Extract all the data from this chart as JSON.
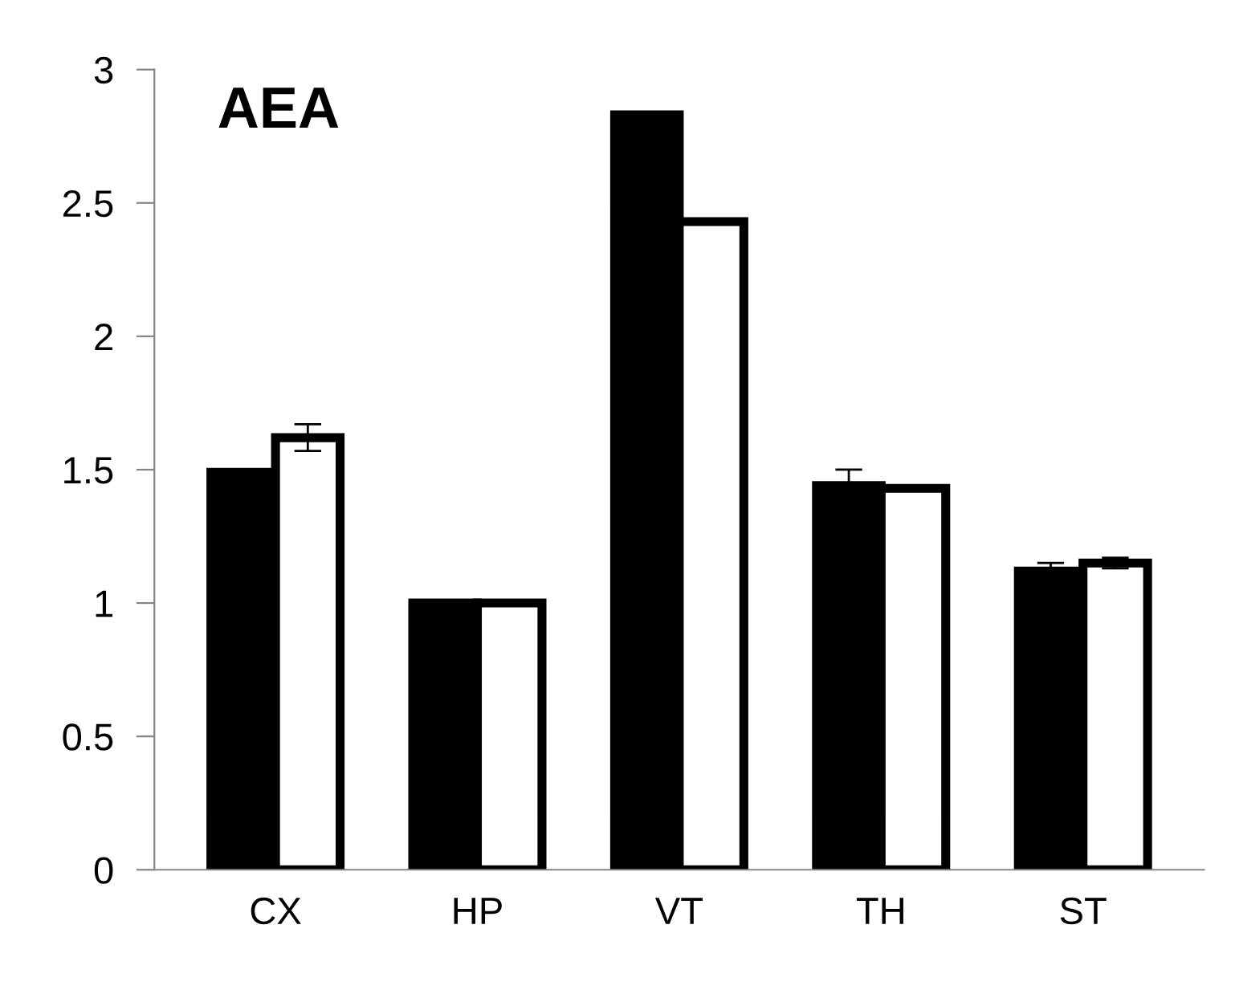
{
  "chart_data": {
    "type": "bar",
    "title": "AEA",
    "categories": [
      "CX",
      "HP",
      "VT",
      "TH",
      "ST"
    ],
    "series": [
      {
        "color": "#000000",
        "values": [
          1.49,
          1.0,
          2.83,
          1.44,
          1.12
        ],
        "errors": [
          0.01,
          0,
          0.01,
          0.06,
          0.03
        ]
      },
      {
        "color": "#ffffff",
        "values": [
          1.62,
          1.0,
          2.43,
          1.43,
          1.15
        ],
        "errors": [
          0.05,
          0,
          0.01,
          0.01,
          0.02
        ]
      }
    ],
    "ylim": [
      0,
      3
    ],
    "yticks": [
      0,
      0.5,
      1,
      1.5,
      2,
      2.5,
      3
    ],
    "grid": false,
    "legend": false
  }
}
